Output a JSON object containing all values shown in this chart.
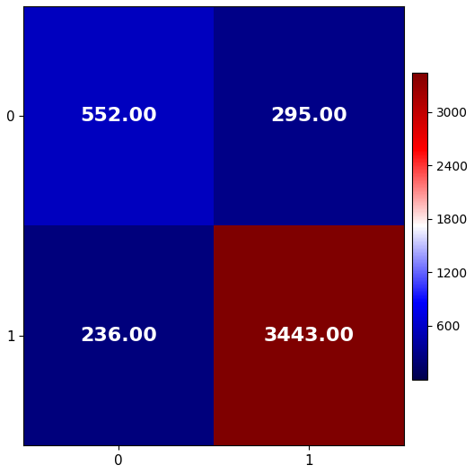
{
  "matrix": [
    [
      552,
      295
    ],
    [
      236,
      3443
    ]
  ],
  "x_labels": [
    "0",
    "1"
  ],
  "y_labels": [
    "0",
    "1"
  ],
  "colorbar_ticks": [
    600,
    1200,
    1800,
    2400,
    3000
  ],
  "vmin": 0,
  "vmax": 3443,
  "text_color": "white",
  "text_fontsize": 16,
  "cmap": "seismic",
  "figsize": [
    5.28,
    5.28
  ],
  "dpi": 100,
  "tick_fontsize": 11,
  "cbar_fontsize": 10
}
